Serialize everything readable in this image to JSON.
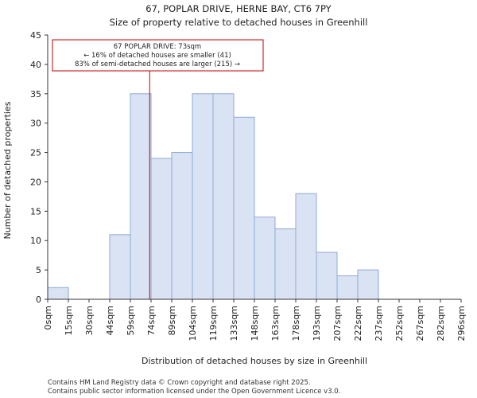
{
  "chart_data": {
    "type": "bar",
    "title_line1": "67, POPLAR DRIVE, HERNE BAY, CT6 7PY",
    "title_line2": "Size of property relative to detached houses in Greenhill",
    "xlabel": "Distribution of detached houses by size in Greenhill",
    "ylabel": "Number of detached properties",
    "bin_edges": [
      0,
      15,
      30,
      44,
      59,
      74,
      89,
      104,
      119,
      133,
      148,
      163,
      178,
      193,
      207,
      222,
      237,
      252,
      267,
      282,
      296
    ],
    "x_tick_labels": [
      "0sqm",
      "15sqm",
      "30sqm",
      "44sqm",
      "59sqm",
      "74sqm",
      "89sqm",
      "104sqm",
      "119sqm",
      "133sqm",
      "148sqm",
      "163sqm",
      "178sqm",
      "193sqm",
      "207sqm",
      "222sqm",
      "237sqm",
      "252sqm",
      "267sqm",
      "282sqm",
      "296sqm"
    ],
    "values": [
      2,
      0,
      0,
      11,
      35,
      24,
      25,
      35,
      35,
      31,
      14,
      12,
      18,
      8,
      4,
      5,
      0,
      0,
      0,
      0
    ],
    "ylim": [
      0,
      45
    ],
    "y_ticks": [
      0,
      5,
      10,
      15,
      20,
      25,
      30,
      35,
      40,
      45
    ],
    "marker_value": 73,
    "annotation": {
      "line1": "67 POPLAR DRIVE: 73sqm",
      "line2": "← 16% of detached houses are smaller (41)",
      "line3": "83% of semi-detached houses are larger (215) →"
    },
    "colors": {
      "bar_fill": "#dae3f3",
      "bar_edge": "#8ea9d4",
      "highlight_fill": "#dae3f3",
      "marker": "#c00000",
      "axis": "#333333"
    }
  },
  "footer": {
    "line1": "Contains HM Land Registry data © Crown copyright and database right 2025.",
    "line2": "Contains public sector information licensed under the Open Government Licence v3.0."
  }
}
